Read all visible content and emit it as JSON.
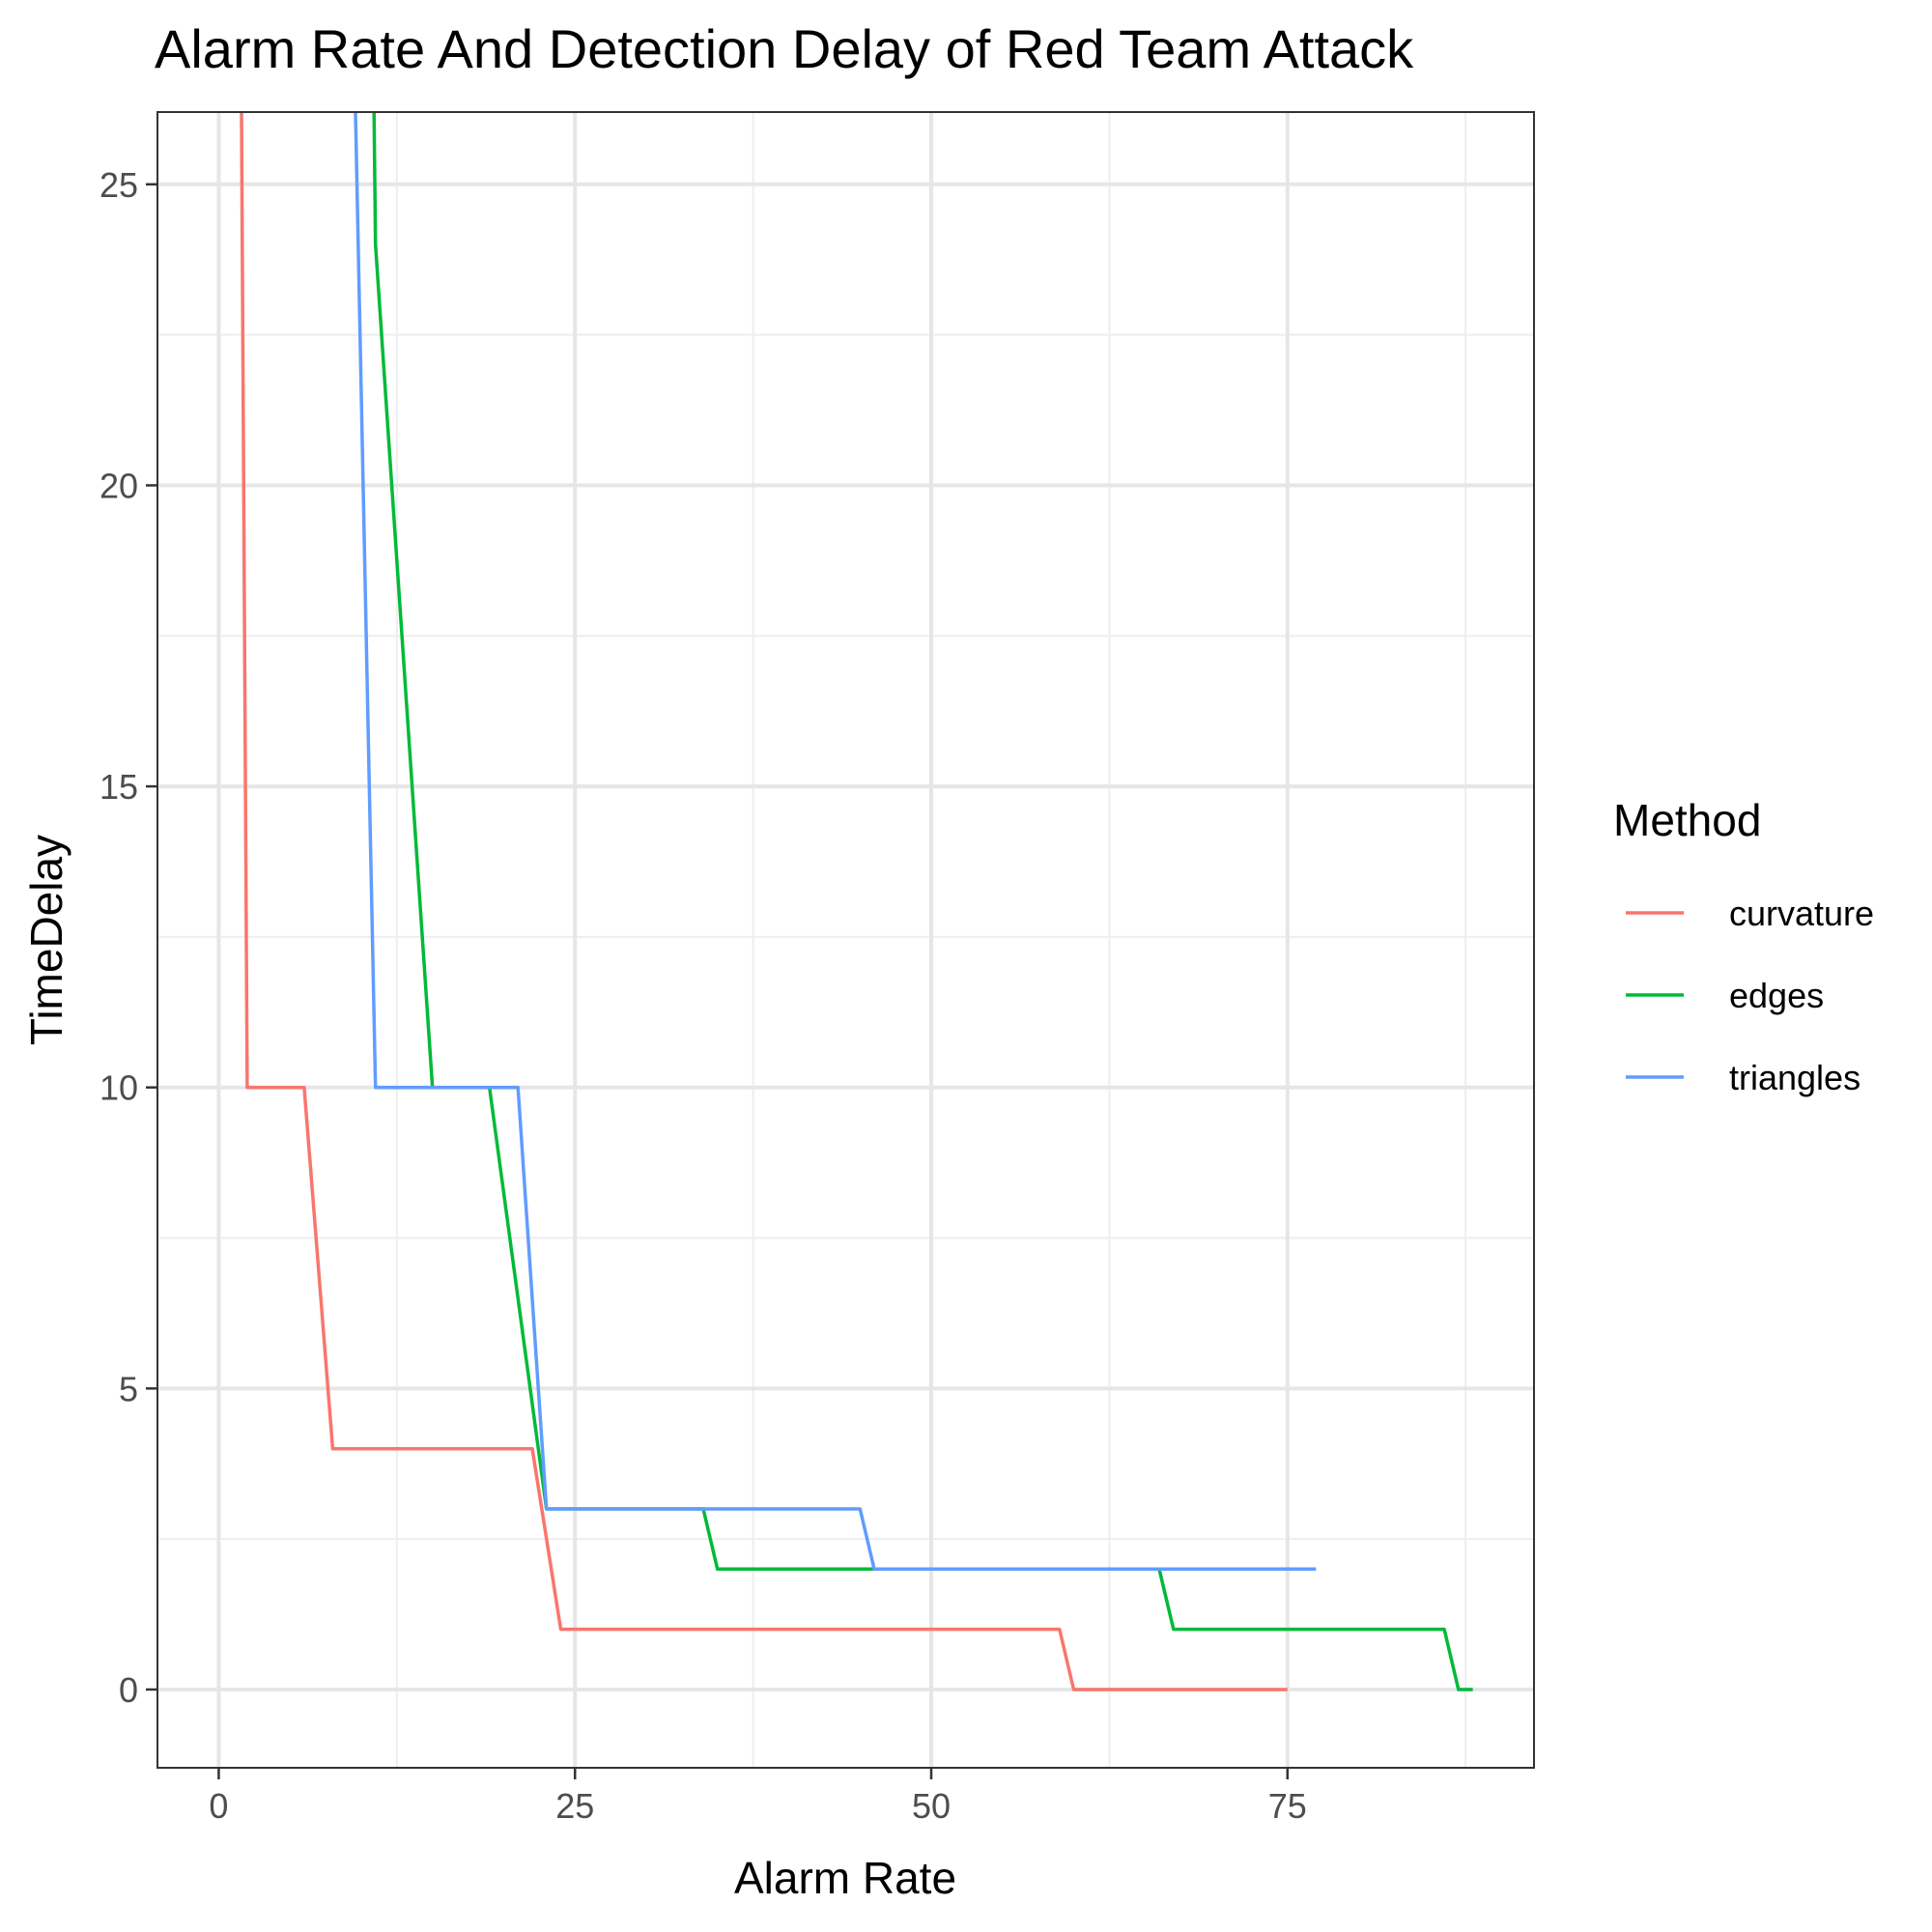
{
  "chart_data": {
    "type": "line",
    "title": "Alarm Rate And Detection Delay of Red Team Attack",
    "xlabel": "Alarm Rate",
    "ylabel": "TimeDelay",
    "xlim": [
      -4.3,
      92.3
    ],
    "ylim": [
      -1.3,
      26.2
    ],
    "x_ticks": [
      0,
      25,
      50,
      75
    ],
    "y_ticks": [
      0,
      5,
      10,
      15,
      20,
      25
    ],
    "grid": true,
    "legend": {
      "title": "Method",
      "position": "right"
    },
    "series": [
      {
        "name": "curvature",
        "color": "#F8766D",
        "points": [
          [
            1.6,
            26.2
          ],
          [
            2,
            10
          ],
          [
            6,
            10
          ],
          [
            8,
            4
          ],
          [
            22,
            4
          ],
          [
            24,
            1
          ],
          [
            59,
            1
          ],
          [
            60,
            0
          ],
          [
            75,
            0
          ]
        ]
      },
      {
        "name": "edges",
        "color": "#00BA38",
        "points": [
          [
            10.9,
            26.2
          ],
          [
            11,
            24
          ],
          [
            15,
            10
          ],
          [
            19,
            10
          ],
          [
            23,
            3
          ],
          [
            34,
            3
          ],
          [
            35,
            2
          ],
          [
            66,
            2
          ],
          [
            67,
            1
          ],
          [
            86,
            1
          ],
          [
            87,
            0
          ],
          [
            88,
            0
          ]
        ]
      },
      {
        "name": "triangles",
        "color": "#619CFF",
        "points": [
          [
            9.6,
            26.2
          ],
          [
            11,
            10
          ],
          [
            21,
            10
          ],
          [
            23,
            3
          ],
          [
            45,
            3
          ],
          [
            46,
            2
          ],
          [
            77,
            2
          ]
        ]
      }
    ]
  }
}
